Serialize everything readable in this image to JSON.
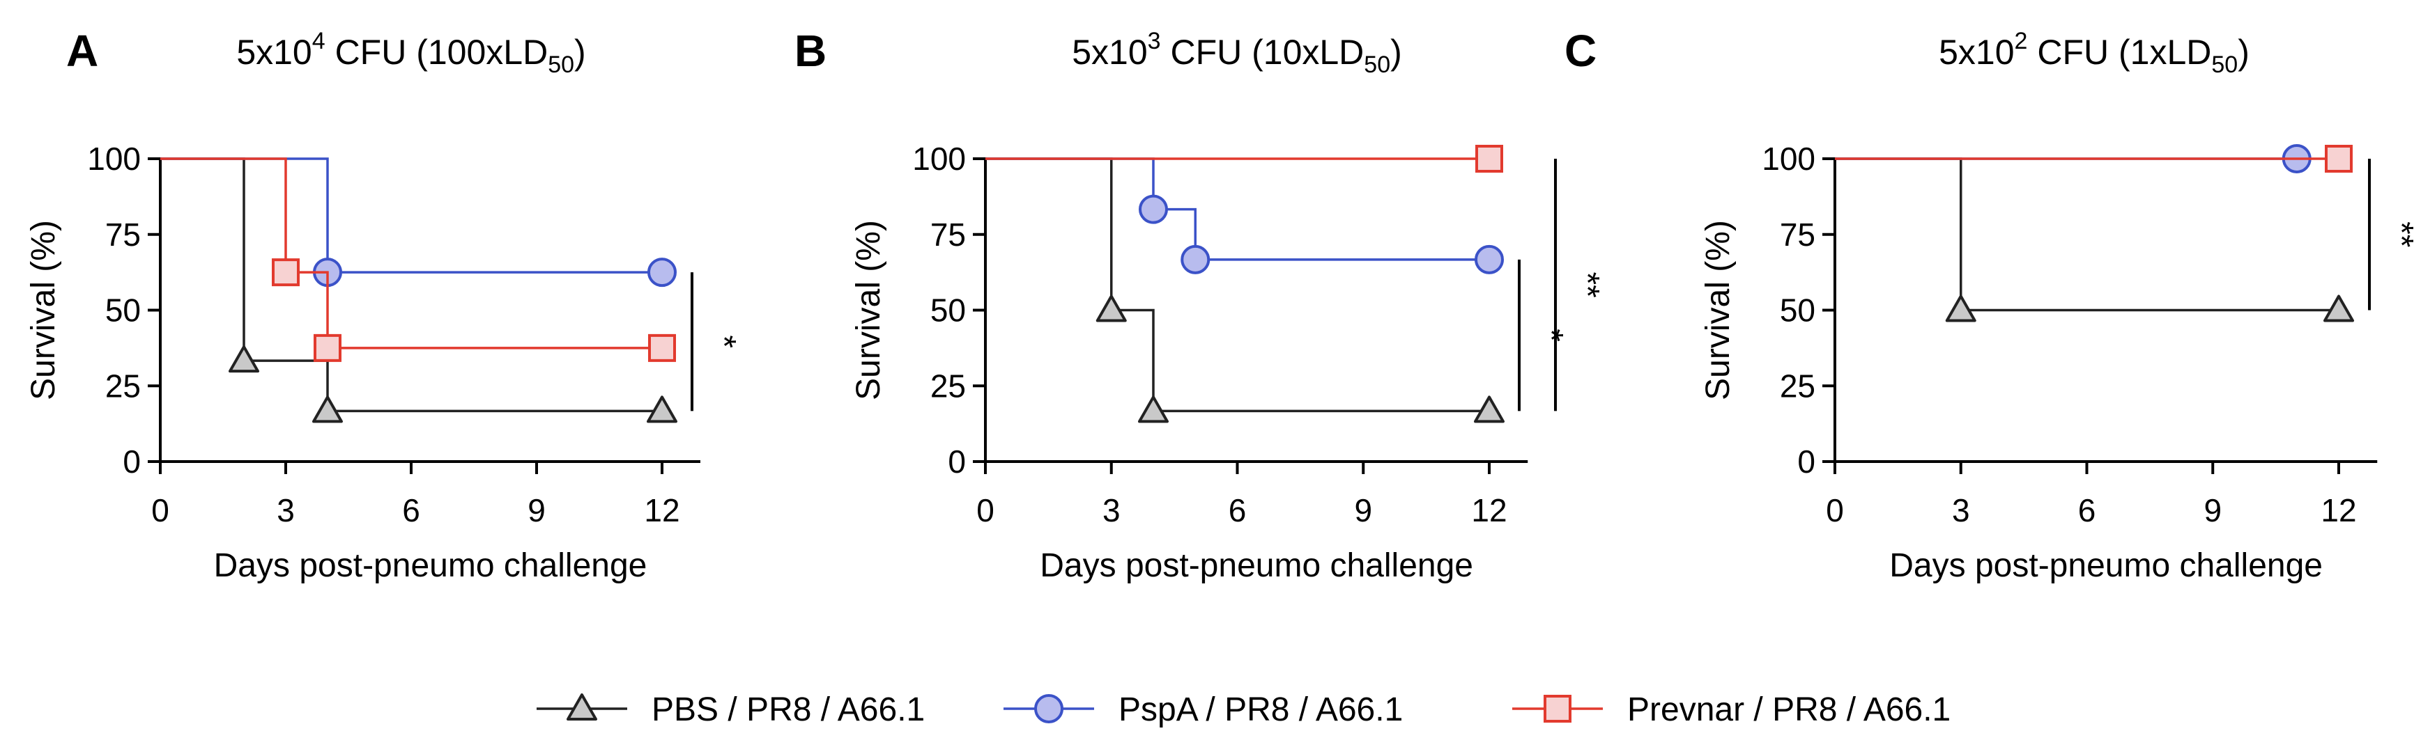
{
  "chart_data": [
    {
      "type": "line",
      "subtype": "kaplan-meier",
      "panel": "A",
      "title_parts": [
        "5x10",
        "4",
        " CFU (100xLD",
        "50",
        ")"
      ],
      "xlabel": "Days post-pneumo challenge",
      "ylabel": "Survival (%)",
      "xlim": [
        0,
        13
      ],
      "ylim": [
        0,
        100
      ],
      "xticks": [
        "0",
        "3",
        "6",
        "9",
        "12"
      ],
      "yticks": [
        "0",
        "25",
        "50",
        "75",
        "100"
      ],
      "grid": false,
      "series": [
        {
          "name": "PBS / PR8 / A66.1",
          "color": "#222222",
          "fill": "#c9c9c9",
          "marker": "triangle",
          "x": [
            0,
            2,
            4,
            12
          ],
          "y": [
            100,
            33.3,
            16.7,
            16.7
          ],
          "marked": [
            1,
            2,
            3
          ]
        },
        {
          "name": "PspA / PR8 / A66.1",
          "color": "#3b52c8",
          "fill": "#b8bcee",
          "marker": "circle",
          "x": [
            0,
            4,
            12
          ],
          "y": [
            100,
            62.5,
            62.5
          ],
          "marked": [
            1,
            2
          ]
        },
        {
          "name": "Prevnar / PR8 / A66.1",
          "color": "#e23a2e",
          "fill": "#f7d2d2",
          "marker": "square",
          "x": [
            0,
            3,
            4,
            12
          ],
          "y": [
            100,
            62.5,
            37.5,
            37.5
          ],
          "marked": [
            1,
            2,
            3
          ]
        }
      ],
      "significance": [
        {
          "label": "*",
          "y_range": [
            16.7,
            62.5
          ]
        }
      ]
    },
    {
      "type": "line",
      "subtype": "kaplan-meier",
      "panel": "B",
      "title_parts": [
        "5x10",
        "3",
        " CFU  (10xLD",
        "50",
        ")"
      ],
      "xlabel": "Days post-pneumo challenge",
      "ylabel": "Survival (%)",
      "xlim": [
        0,
        13
      ],
      "ylim": [
        0,
        100
      ],
      "xticks": [
        "0",
        "3",
        "6",
        "9",
        "12"
      ],
      "yticks": [
        "0",
        "25",
        "50",
        "75",
        "100"
      ],
      "grid": false,
      "series": [
        {
          "name": "PBS / PR8 / A66.1",
          "color": "#222222",
          "fill": "#c9c9c9",
          "marker": "triangle",
          "x": [
            0,
            3,
            4,
            12
          ],
          "y": [
            100,
            50,
            16.7,
            16.7
          ],
          "marked": [
            1,
            2,
            3
          ]
        },
        {
          "name": "PspA / PR8 / A66.1",
          "color": "#3b52c8",
          "fill": "#b8bcee",
          "marker": "circle",
          "x": [
            0,
            4,
            5,
            12
          ],
          "y": [
            100,
            83.3,
            66.7,
            66.7
          ],
          "marked": [
            1,
            2,
            3
          ]
        },
        {
          "name": "Prevnar / PR8 / A66.1",
          "color": "#e23a2e",
          "fill": "#f7d2d2",
          "marker": "square",
          "x": [
            0,
            12
          ],
          "y": [
            100,
            100
          ],
          "marked": [
            1
          ]
        }
      ],
      "significance": [
        {
          "label": "*",
          "y_range": [
            16.7,
            66.7
          ]
        },
        {
          "label": "**",
          "y_range": [
            16.7,
            100
          ]
        }
      ]
    },
    {
      "type": "line",
      "subtype": "kaplan-meier",
      "panel": "C",
      "title_parts": [
        "5x10",
        "2",
        " CFU (1xLD",
        "50",
        ")"
      ],
      "xlabel": "Days post-pneumo challenge",
      "ylabel": "Survival (%)",
      "xlim": [
        0,
        13
      ],
      "ylim": [
        0,
        100
      ],
      "xticks": [
        "0",
        "3",
        "6",
        "9",
        "12"
      ],
      "yticks": [
        "0",
        "25",
        "50",
        "75",
        "100"
      ],
      "grid": false,
      "series": [
        {
          "name": "PBS / PR8 / A66.1",
          "color": "#222222",
          "fill": "#c9c9c9",
          "marker": "triangle",
          "x": [
            0,
            3,
            12
          ],
          "y": [
            100,
            50,
            50
          ],
          "marked": [
            1,
            2
          ]
        },
        {
          "name": "PspA / PR8 / A66.1",
          "color": "#3b52c8",
          "fill": "#b8bcee",
          "marker": "circle",
          "x": [
            0,
            11
          ],
          "y": [
            100,
            100
          ],
          "marked": [
            1
          ]
        },
        {
          "name": "Prevnar / PR8 / A66.1",
          "color": "#e23a2e",
          "fill": "#f7d2d2",
          "marker": "square",
          "x": [
            0,
            12
          ],
          "y": [
            100,
            100
          ],
          "marked": [
            1
          ]
        }
      ],
      "significance": [
        {
          "label": "**",
          "y_range": [
            50,
            100
          ]
        }
      ]
    }
  ],
  "legend": [
    {
      "label": "PBS / PR8 / A66.1",
      "marker": "triangle",
      "color": "#222222",
      "fill": "#c9c9c9"
    },
    {
      "label": "PspA / PR8 / A66.1",
      "marker": "circle",
      "color": "#3b52c8",
      "fill": "#b8bcee"
    },
    {
      "label": "Prevnar / PR8 / A66.1",
      "marker": "square",
      "color": "#e23a2e",
      "fill": "#f7d2d2"
    }
  ]
}
